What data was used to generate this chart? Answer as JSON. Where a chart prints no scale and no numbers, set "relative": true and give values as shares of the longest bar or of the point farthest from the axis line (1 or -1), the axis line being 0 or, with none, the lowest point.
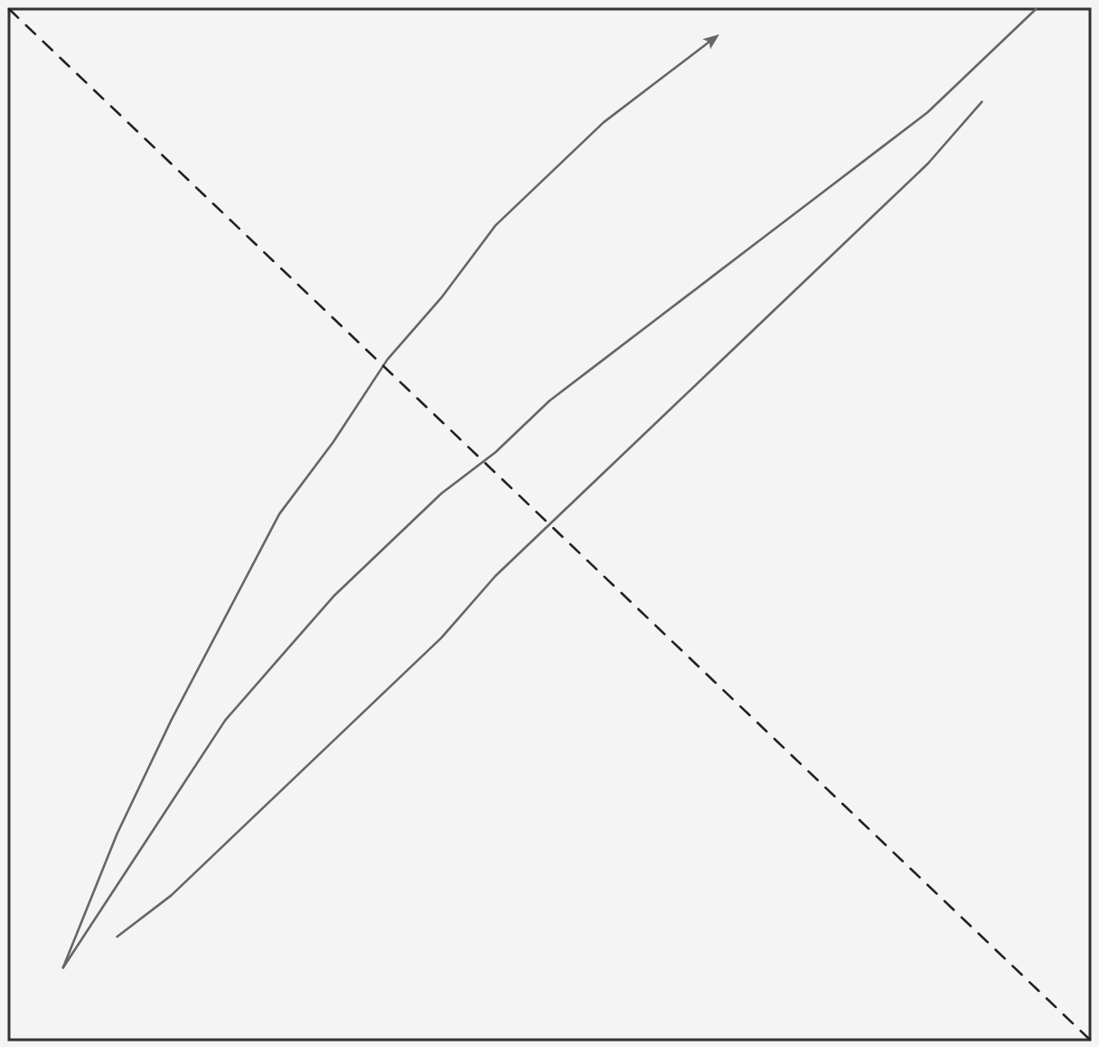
{
  "chart_data": {
    "type": "line",
    "relative": true,
    "marker": "none",
    "grid": false,
    "tick_labels": false,
    "categories": [
      null,
      null,
      null,
      null,
      null,
      null,
      null,
      null,
      null,
      null,
      null,
      null,
      null,
      null,
      null,
      null,
      null,
      null,
      null,
      null,
      null
    ],
    "series": [
      {
        "color": "#666666",
        "line_style": "solid",
        "values": [
          null,
          0.07,
          0.2,
          0.31,
          0.41,
          0.51,
          0.58,
          0.66,
          0.72,
          0.79,
          0.84,
          0.89,
          0.93,
          0.97,
          null,
          null,
          null,
          null,
          null,
          null,
          null
        ]
      },
      {
        "color": "#666666",
        "line_style": "solid",
        "values": [
          null,
          0.07,
          0.15,
          0.23,
          0.31,
          0.37,
          0.43,
          0.48,
          0.53,
          0.57,
          0.62,
          0.66,
          0.7,
          0.74,
          0.78,
          0.82,
          0.86,
          0.9,
          0.95,
          1,
          null
        ]
      },
      {
        "color": "#666666",
        "line_style": "solid",
        "values": [
          null,
          null,
          0.1,
          0.14,
          0.19,
          0.24,
          0.29,
          0.34,
          0.39,
          0.45,
          0.5,
          0.55,
          0.6,
          0.65,
          0.7,
          0.75,
          0.8,
          0.85,
          0.91,
          null,
          null
        ]
      },
      {
        "color": "#222222",
        "line_style": "dashed",
        "values": [
          1,
          0.95,
          0.9,
          0.85,
          0.8,
          0.75,
          0.7,
          0.65,
          0.6,
          0.55,
          0.5,
          0.45,
          0.4,
          0.35,
          0.3,
          0.25,
          0.2,
          0.15,
          0.1,
          0.05,
          0
        ]
      }
    ]
  }
}
